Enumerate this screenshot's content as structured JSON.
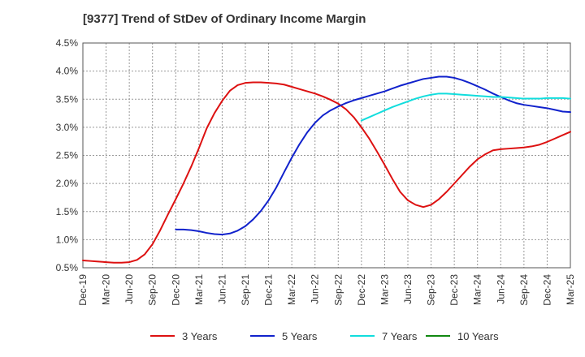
{
  "chart_data": {
    "type": "line",
    "title": "[9377]  Trend of StDev of Ordinary Income Margin",
    "xlabel": "",
    "ylabel": "",
    "ylim": [
      0.5,
      4.5
    ],
    "y_ticks": [
      "0.5%",
      "1.0%",
      "1.5%",
      "2.0%",
      "2.5%",
      "3.0%",
      "3.5%",
      "4.0%",
      "4.5%"
    ],
    "y_tick_values": [
      0.5,
      1.0,
      1.5,
      2.0,
      2.5,
      3.0,
      3.5,
      4.0,
      4.5
    ],
    "x_ticks": [
      "Dec-19",
      "Mar-20",
      "Jun-20",
      "Sep-20",
      "Dec-20",
      "Mar-21",
      "Jun-21",
      "Sep-21",
      "Dec-21",
      "Mar-22",
      "Jun-22",
      "Sep-22",
      "Dec-22",
      "Mar-23",
      "Jun-23",
      "Sep-23",
      "Dec-23",
      "Mar-24",
      "Jun-24",
      "Sep-24",
      "Dec-24",
      "Mar-25"
    ],
    "grid": true,
    "legend_position": "bottom",
    "series": [
      {
        "name": "3 Years",
        "color": "#dd1111",
        "points": [
          [
            "Dec-19",
            0.63
          ],
          [
            "Jan-20",
            0.62
          ],
          [
            "Feb-20",
            0.61
          ],
          [
            "Mar-20",
            0.6
          ],
          [
            "Apr-20",
            0.59
          ],
          [
            "May-20",
            0.59
          ],
          [
            "Jun-20",
            0.6
          ],
          [
            "Jul-20",
            0.64
          ],
          [
            "Aug-20",
            0.74
          ],
          [
            "Sep-20",
            0.92
          ],
          [
            "Oct-20",
            1.17
          ],
          [
            "Nov-20",
            1.45
          ],
          [
            "Dec-20",
            1.72
          ],
          [
            "Jan-21",
            2.0
          ],
          [
            "Feb-21",
            2.3
          ],
          [
            "Mar-21",
            2.63
          ],
          [
            "Apr-21",
            2.98
          ],
          [
            "May-21",
            3.25
          ],
          [
            "Jun-21",
            3.47
          ],
          [
            "Jul-21",
            3.65
          ],
          [
            "Aug-21",
            3.75
          ],
          [
            "Sep-21",
            3.79
          ],
          [
            "Oct-21",
            3.8
          ],
          [
            "Nov-21",
            3.8
          ],
          [
            "Dec-21",
            3.79
          ],
          [
            "Jan-22",
            3.78
          ],
          [
            "Feb-22",
            3.76
          ],
          [
            "Mar-22",
            3.72
          ],
          [
            "Apr-22",
            3.68
          ],
          [
            "May-22",
            3.64
          ],
          [
            "Jun-22",
            3.6
          ],
          [
            "Jul-22",
            3.55
          ],
          [
            "Aug-22",
            3.49
          ],
          [
            "Sep-22",
            3.42
          ],
          [
            "Oct-22",
            3.32
          ],
          [
            "Nov-22",
            3.18
          ],
          [
            "Dec-22",
            3.0
          ],
          [
            "Jan-23",
            2.8
          ],
          [
            "Feb-23",
            2.57
          ],
          [
            "Mar-23",
            2.33
          ],
          [
            "Apr-23",
            2.08
          ],
          [
            "May-23",
            1.85
          ],
          [
            "Jun-23",
            1.7
          ],
          [
            "Jul-23",
            1.62
          ],
          [
            "Aug-23",
            1.58
          ],
          [
            "Sep-23",
            1.62
          ],
          [
            "Oct-23",
            1.72
          ],
          [
            "Nov-23",
            1.85
          ],
          [
            "Dec-23",
            2.0
          ],
          [
            "Jan-24",
            2.15
          ],
          [
            "Feb-24",
            2.3
          ],
          [
            "Mar-24",
            2.43
          ],
          [
            "Apr-24",
            2.52
          ],
          [
            "May-24",
            2.59
          ],
          [
            "Jun-24",
            2.61
          ],
          [
            "Jul-24",
            2.62
          ],
          [
            "Aug-24",
            2.63
          ],
          [
            "Sep-24",
            2.64
          ],
          [
            "Oct-24",
            2.66
          ],
          [
            "Nov-24",
            2.69
          ],
          [
            "Dec-24",
            2.74
          ],
          [
            "Jan-25",
            2.8
          ],
          [
            "Feb-25",
            2.86
          ],
          [
            "Mar-25",
            2.92
          ]
        ]
      },
      {
        "name": "5 Years",
        "color": "#1122cc",
        "points": [
          [
            "Dec-20",
            1.18
          ],
          [
            "Jan-21",
            1.18
          ],
          [
            "Feb-21",
            1.17
          ],
          [
            "Mar-21",
            1.15
          ],
          [
            "Apr-21",
            1.12
          ],
          [
            "May-21",
            1.1
          ],
          [
            "Jun-21",
            1.09
          ],
          [
            "Jul-21",
            1.11
          ],
          [
            "Aug-21",
            1.16
          ],
          [
            "Sep-21",
            1.24
          ],
          [
            "Oct-21",
            1.36
          ],
          [
            "Nov-21",
            1.51
          ],
          [
            "Dec-21",
            1.7
          ],
          [
            "Jan-22",
            1.93
          ],
          [
            "Feb-22",
            2.2
          ],
          [
            "Mar-22",
            2.46
          ],
          [
            "Apr-22",
            2.7
          ],
          [
            "May-22",
            2.91
          ],
          [
            "Jun-22",
            3.08
          ],
          [
            "Jul-22",
            3.21
          ],
          [
            "Aug-22",
            3.3
          ],
          [
            "Sep-22",
            3.37
          ],
          [
            "Oct-22",
            3.43
          ],
          [
            "Nov-22",
            3.48
          ],
          [
            "Dec-22",
            3.52
          ],
          [
            "Jan-23",
            3.56
          ],
          [
            "Feb-23",
            3.6
          ],
          [
            "Mar-23",
            3.64
          ],
          [
            "Apr-23",
            3.69
          ],
          [
            "May-23",
            3.74
          ],
          [
            "Jun-23",
            3.78
          ],
          [
            "Jul-23",
            3.82
          ],
          [
            "Aug-23",
            3.86
          ],
          [
            "Sep-23",
            3.88
          ],
          [
            "Oct-23",
            3.9
          ],
          [
            "Nov-23",
            3.9
          ],
          [
            "Dec-23",
            3.88
          ],
          [
            "Jan-24",
            3.84
          ],
          [
            "Feb-24",
            3.79
          ],
          [
            "Mar-24",
            3.73
          ],
          [
            "Apr-24",
            3.67
          ],
          [
            "May-24",
            3.6
          ],
          [
            "Jun-24",
            3.54
          ],
          [
            "Jul-24",
            3.48
          ],
          [
            "Aug-24",
            3.43
          ],
          [
            "Sep-24",
            3.4
          ],
          [
            "Oct-24",
            3.38
          ],
          [
            "Nov-24",
            3.36
          ],
          [
            "Dec-24",
            3.34
          ],
          [
            "Jan-25",
            3.31
          ],
          [
            "Feb-25",
            3.28
          ],
          [
            "Mar-25",
            3.27
          ]
        ]
      },
      {
        "name": "7 Years",
        "color": "#11dddd",
        "points": [
          [
            "Dec-22",
            3.12
          ],
          [
            "Jan-23",
            3.18
          ],
          [
            "Feb-23",
            3.24
          ],
          [
            "Mar-23",
            3.3
          ],
          [
            "Apr-23",
            3.36
          ],
          [
            "May-23",
            3.41
          ],
          [
            "Jun-23",
            3.46
          ],
          [
            "Jul-23",
            3.51
          ],
          [
            "Aug-23",
            3.55
          ],
          [
            "Sep-23",
            3.58
          ],
          [
            "Oct-23",
            3.6
          ],
          [
            "Nov-23",
            3.6
          ],
          [
            "Dec-23",
            3.59
          ],
          [
            "Jan-24",
            3.58
          ],
          [
            "Feb-24",
            3.57
          ],
          [
            "Mar-24",
            3.56
          ],
          [
            "Apr-24",
            3.55
          ],
          [
            "May-24",
            3.54
          ],
          [
            "Jun-24",
            3.54
          ],
          [
            "Jul-24",
            3.53
          ],
          [
            "Aug-24",
            3.52
          ],
          [
            "Sep-24",
            3.51
          ],
          [
            "Oct-24",
            3.51
          ],
          [
            "Nov-24",
            3.51
          ],
          [
            "Dec-24",
            3.52
          ],
          [
            "Jan-25",
            3.52
          ],
          [
            "Feb-25",
            3.52
          ],
          [
            "Mar-25",
            3.51
          ]
        ]
      },
      {
        "name": "10 Years",
        "color": "#118811",
        "points": []
      }
    ]
  }
}
